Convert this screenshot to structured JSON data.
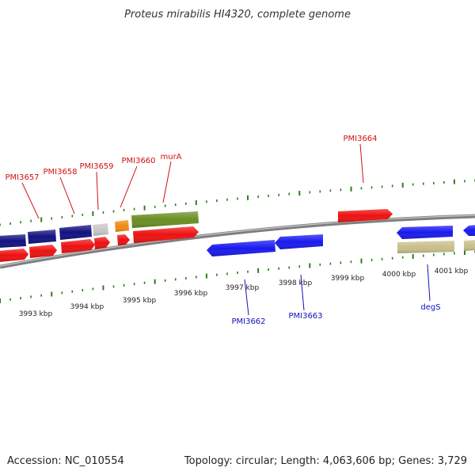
{
  "title": "Proteus mirabilis HI4320, complete genome",
  "footer": {
    "accession": "Accession: NC_010554",
    "summary": "Topology: circular; Length: 4,063,606 bp; Genes: 3,729"
  },
  "colors": {
    "backbone": "#8a8a8a",
    "tick": "#2e7d1e",
    "gene_red": "#ee1111",
    "gene_blue": "#1a1aee",
    "gene_navy": "#121280",
    "gene_olive": "#6b8e23",
    "gene_khaki": "#c9c08a",
    "gene_orange": "#f08c10",
    "gene_gray": "#c8c8c8",
    "label_red": "#d01010",
    "label_blue": "#1010c0"
  },
  "scale_labels": [
    "3993 kbp",
    "3994 kbp",
    "3995 kbp",
    "3996 kbp",
    "3997 kbp",
    "3998 kbp",
    "3999 kbp",
    "4000 kbp",
    "4001 kbp"
  ],
  "gene_labels_top": [
    {
      "name": "PMI3657",
      "color": "red"
    },
    {
      "name": "PMI3658",
      "color": "red"
    },
    {
      "name": "PMI3659",
      "color": "red"
    },
    {
      "name": "PMI3660",
      "color": "red"
    },
    {
      "name": "murA",
      "color": "red"
    },
    {
      "name": "PMI3664",
      "color": "red"
    }
  ],
  "gene_labels_bottom": [
    {
      "name": "PMI3662",
      "color": "blue"
    },
    {
      "name": "PMI3663",
      "color": "blue"
    },
    {
      "name": "degS",
      "color": "blue"
    }
  ]
}
